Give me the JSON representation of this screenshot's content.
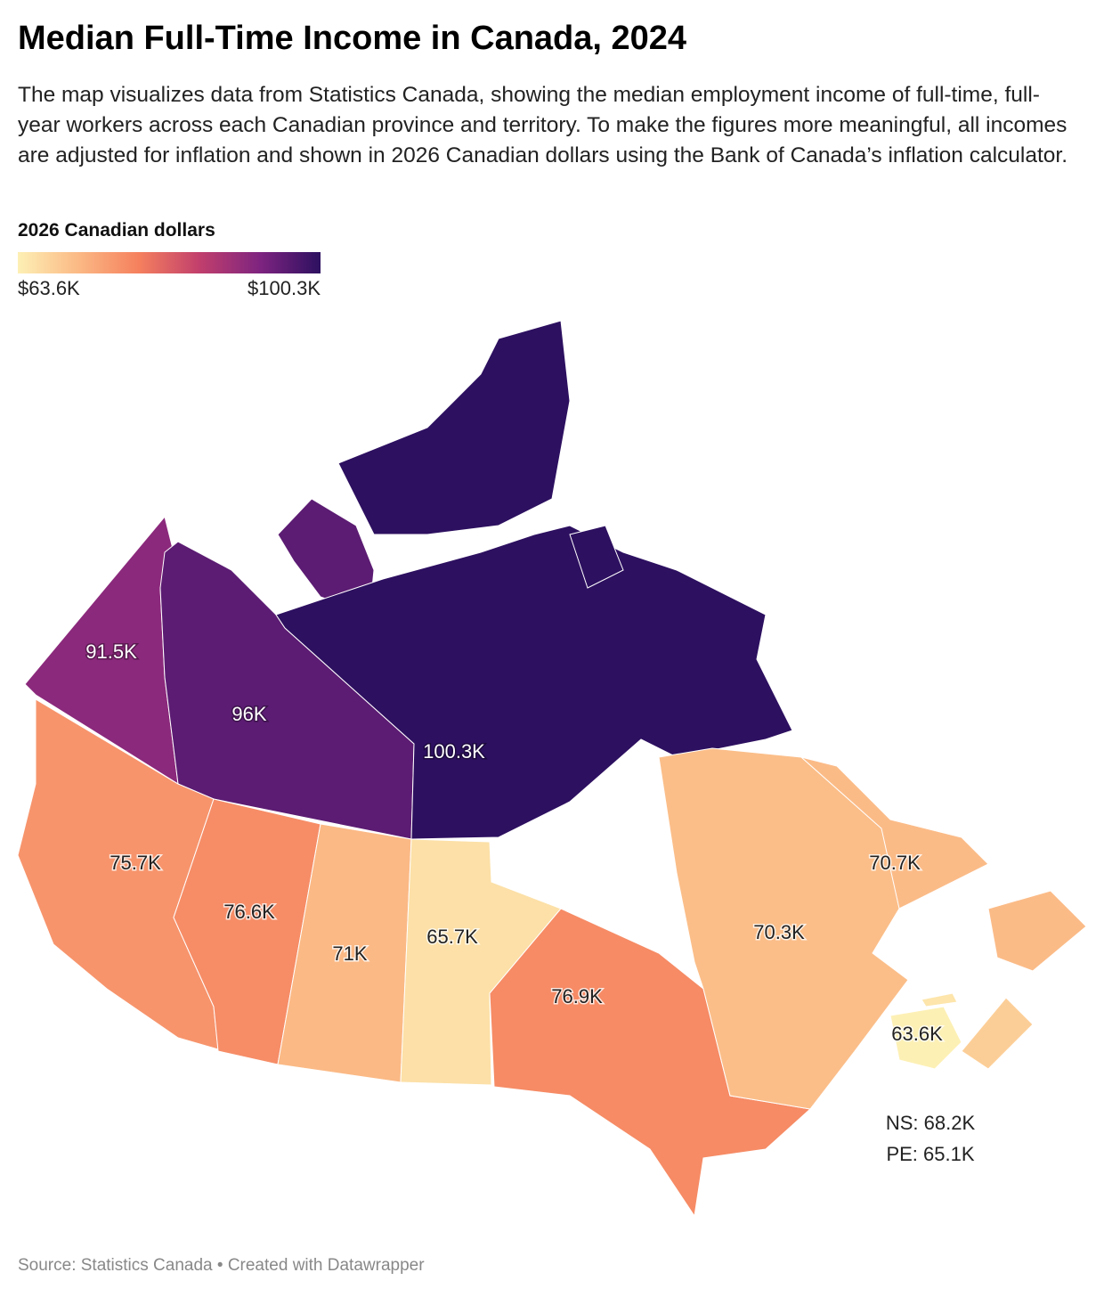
{
  "map": {
    "title": "Median Full-Time Income in Canada, 2024",
    "subtitle": "The map visualizes data from Statistics Canada, showing the median employment income of full-time, full-year workers across each Canadian province and territory. To make the figures more meaningful, all incomes are adjusted for inflation and shown in 2026 Canadian dollars using the Bank of Canada’s inflation calculator.",
    "legend": {
      "title": "2026 Canadian dollars",
      "min": 63.6,
      "max": 100.3,
      "min_label": "$63.6K",
      "max_label": "$100.3K",
      "colors": [
        "#fdf0b5",
        "#fbb985",
        "#f5805e",
        "#c13f6c",
        "#7e2480",
        "#2d1060"
      ]
    },
    "regions": [
      {
        "label": "91.5K",
        "value": 91.5
      },
      {
        "label": "96K",
        "value": 96
      },
      {
        "label": "100.3K",
        "value": 100.3
      },
      {
        "label": "75.7K",
        "value": 75.7
      },
      {
        "label": "76.6K",
        "value": 76.6
      },
      {
        "label": "71K",
        "value": 71
      },
      {
        "label": "65.7K",
        "value": 65.7
      },
      {
        "label": "76.9K",
        "value": 76.9
      },
      {
        "label": "70.3K",
        "value": 70.3
      },
      {
        "label": "70.7K",
        "value": 70.7
      },
      {
        "label": "63.6K",
        "value": 63.6
      },
      {
        "label": "NS: 68.2K",
        "value": 68.2
      },
      {
        "label": "PE: 65.1K",
        "value": 65.1
      }
    ],
    "source": "Source: Statistics Canada • Created with Datawrapper"
  }
}
